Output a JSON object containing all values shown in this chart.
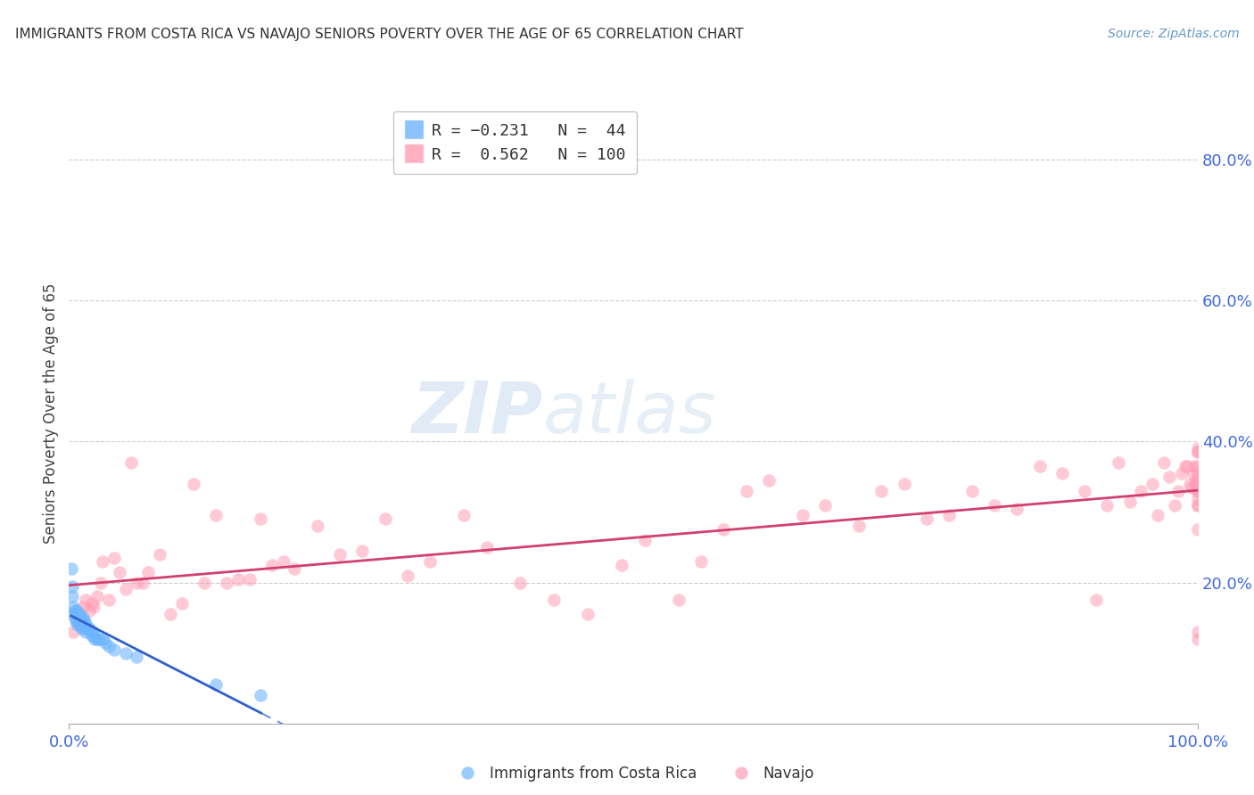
{
  "title": "IMMIGRANTS FROM COSTA RICA VS NAVAJO SENIORS POVERTY OVER THE AGE OF 65 CORRELATION CHART",
  "source": "Source: ZipAtlas.com",
  "tick_color": "#4169E1",
  "ylabel": "Seniors Poverty Over the Age of 65",
  "xlim": [
    0.0,
    1.0
  ],
  "ylim": [
    0.0,
    0.88
  ],
  "y_ticks": [
    0.2,
    0.4,
    0.6,
    0.8
  ],
  "y_tick_labels": [
    "20.0%",
    "40.0%",
    "60.0%",
    "80.0%"
  ],
  "legend_r1": "R = -0.231",
  "legend_n1": "N =  44",
  "legend_r2": "R =  0.562",
  "legend_n2": "N = 100",
  "blue_color": "#6EB5FF",
  "pink_color": "#FF9EB5",
  "trendline_blue": "#3060CC",
  "trendline_pink": "#D04070",
  "watermark_zip": "ZIP",
  "watermark_atlas": "atlas",
  "blue_scatter_x": [
    0.002,
    0.003,
    0.003,
    0.004,
    0.004,
    0.005,
    0.005,
    0.006,
    0.006,
    0.007,
    0.007,
    0.008,
    0.008,
    0.009,
    0.009,
    0.01,
    0.01,
    0.011,
    0.011,
    0.012,
    0.012,
    0.013,
    0.013,
    0.014,
    0.015,
    0.015,
    0.016,
    0.017,
    0.018,
    0.019,
    0.02,
    0.021,
    0.022,
    0.023,
    0.025,
    0.027,
    0.03,
    0.032,
    0.035,
    0.04,
    0.05,
    0.06,
    0.13,
    0.17
  ],
  "blue_scatter_y": [
    0.22,
    0.195,
    0.18,
    0.165,
    0.155,
    0.16,
    0.15,
    0.155,
    0.145,
    0.16,
    0.15,
    0.145,
    0.14,
    0.155,
    0.145,
    0.15,
    0.14,
    0.145,
    0.135,
    0.15,
    0.14,
    0.145,
    0.135,
    0.145,
    0.14,
    0.13,
    0.135,
    0.135,
    0.135,
    0.13,
    0.125,
    0.13,
    0.125,
    0.12,
    0.12,
    0.12,
    0.12,
    0.115,
    0.11,
    0.105,
    0.1,
    0.095,
    0.055,
    0.04
  ],
  "pink_scatter_x": [
    0.004,
    0.008,
    0.01,
    0.012,
    0.015,
    0.018,
    0.02,
    0.022,
    0.025,
    0.028,
    0.03,
    0.035,
    0.04,
    0.045,
    0.05,
    0.055,
    0.06,
    0.065,
    0.07,
    0.08,
    0.09,
    0.1,
    0.11,
    0.12,
    0.13,
    0.14,
    0.15,
    0.16,
    0.17,
    0.18,
    0.19,
    0.2,
    0.22,
    0.24,
    0.26,
    0.28,
    0.3,
    0.32,
    0.35,
    0.37,
    0.4,
    0.43,
    0.46,
    0.49,
    0.51,
    0.54,
    0.56,
    0.58,
    0.6,
    0.62,
    0.65,
    0.67,
    0.7,
    0.72,
    0.74,
    0.76,
    0.78,
    0.8,
    0.82,
    0.84,
    0.86,
    0.88,
    0.9,
    0.91,
    0.92,
    0.93,
    0.94,
    0.95,
    0.96,
    0.965,
    0.97,
    0.975,
    0.98,
    0.983,
    0.986,
    0.989,
    0.991,
    0.993,
    0.995,
    0.996,
    0.997,
    0.998,
    0.999,
    0.999,
    1.0,
    1.0,
    1.0,
    1.0,
    1.0,
    1.0,
    1.0,
    1.0,
    1.0,
    1.0,
    1.0,
    1.0,
    1.0,
    1.0,
    1.0,
    1.0
  ],
  "pink_scatter_y": [
    0.13,
    0.145,
    0.155,
    0.165,
    0.175,
    0.16,
    0.17,
    0.165,
    0.18,
    0.2,
    0.23,
    0.175,
    0.235,
    0.215,
    0.19,
    0.37,
    0.2,
    0.2,
    0.215,
    0.24,
    0.155,
    0.17,
    0.34,
    0.2,
    0.295,
    0.2,
    0.205,
    0.205,
    0.29,
    0.225,
    0.23,
    0.22,
    0.28,
    0.24,
    0.245,
    0.29,
    0.21,
    0.23,
    0.295,
    0.25,
    0.2,
    0.175,
    0.155,
    0.225,
    0.26,
    0.175,
    0.23,
    0.275,
    0.33,
    0.345,
    0.295,
    0.31,
    0.28,
    0.33,
    0.34,
    0.29,
    0.295,
    0.33,
    0.31,
    0.305,
    0.365,
    0.355,
    0.33,
    0.175,
    0.31,
    0.37,
    0.315,
    0.33,
    0.34,
    0.295,
    0.37,
    0.35,
    0.31,
    0.33,
    0.355,
    0.365,
    0.365,
    0.34,
    0.335,
    0.355,
    0.365,
    0.34,
    0.345,
    0.335,
    0.34,
    0.35,
    0.31,
    0.33,
    0.365,
    0.385,
    0.33,
    0.275,
    0.12,
    0.13,
    0.385,
    0.34,
    0.31,
    0.39,
    0.355,
    0.32
  ]
}
